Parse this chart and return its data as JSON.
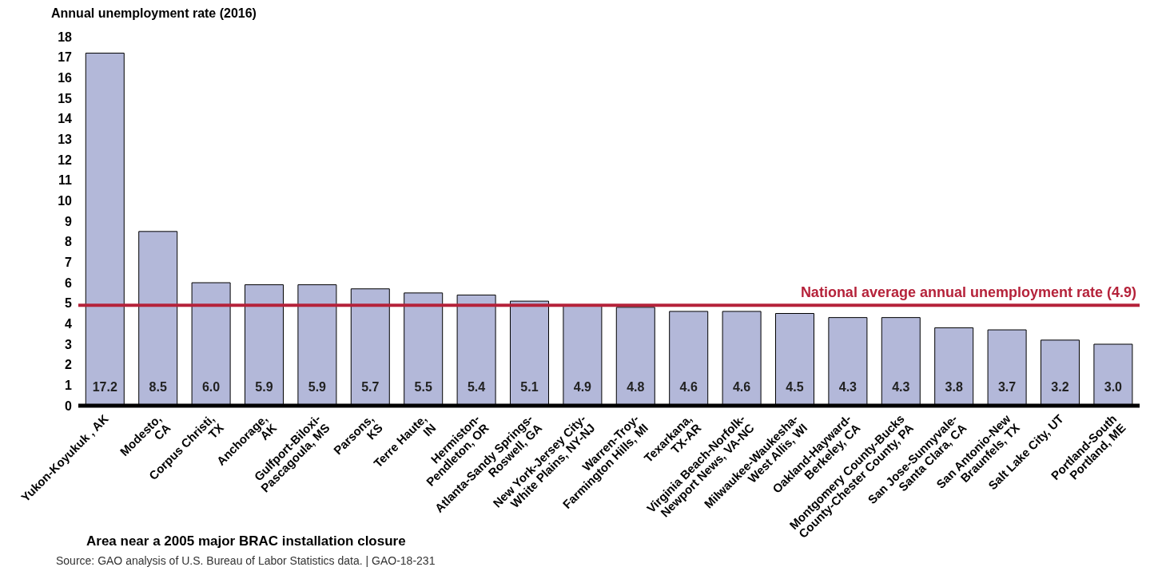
{
  "chart_data": {
    "type": "bar",
    "ylabel": "Annual unemployment rate (2016)",
    "xlabel": "Area near a 2005 major BRAC installation closure",
    "annotations": [
      "Source: GAO analysis of U.S. Bureau of Labor Statistics data.  |  GAO-18-231"
    ],
    "categories": [
      "Yukon-Koyukuk , AK",
      "Modesto,\nCA",
      "Corpus Christi,\nTX",
      "Anchorage,\nAK",
      "Gulfport-Biloxi-\nPascagoula, MS",
      "Parsons,\nKS",
      "Terre Haute,\nIN",
      "Hermiston-\nPendleton, OR",
      "Atlanta-Sandy Springs-\nRoswell, GA",
      "New York-Jersey City-\nWhite Plains, NY-NJ",
      "Warren-Troy-\nFarmington Hills, MI",
      "Texarkana,\nTX-AR",
      "Virginia Beach-Norfolk-\nNewport News, VA-NC",
      "Milwaukee-Waukesha-\nWest Allis, WI",
      "Oakland-Hayward-\nBerkeley, CA",
      "Montgomery County-Bucks\nCounty-Chester County, PA",
      "San Jose-Sunnyvale-\nSanta Clara, CA",
      "San Antonio-New\nBraunfels, TX",
      "Salt Lake City, UT",
      "Portland-South\nPortland, ME"
    ],
    "values": [
      17.2,
      8.5,
      6.0,
      5.9,
      5.9,
      5.7,
      5.5,
      5.4,
      5.1,
      4.9,
      4.8,
      4.6,
      4.6,
      4.5,
      4.3,
      4.3,
      3.8,
      3.7,
      3.2,
      3.0
    ],
    "value_labels": [
      "17.2",
      "8.5",
      "6.0",
      "5.9",
      "5.9",
      "5.7",
      "5.5",
      "5.4",
      "5.1",
      "4.9",
      "4.8",
      "4.6",
      "4.6",
      "4.5",
      "4.3",
      "4.3",
      "3.8",
      "3.7",
      "3.2",
      "3.0"
    ],
    "color": "#b3b8d9",
    "ylim": [
      0,
      18
    ],
    "yticks": [
      0,
      1,
      2,
      3,
      4,
      5,
      6,
      7,
      8,
      9,
      10,
      11,
      12,
      13,
      14,
      15,
      16,
      17,
      18
    ],
    "ref_lines": [
      {
        "axis": "y",
        "value": 4.9,
        "label": "National average annual unemployment rate (4.9)",
        "color": "#b5223a"
      }
    ]
  }
}
